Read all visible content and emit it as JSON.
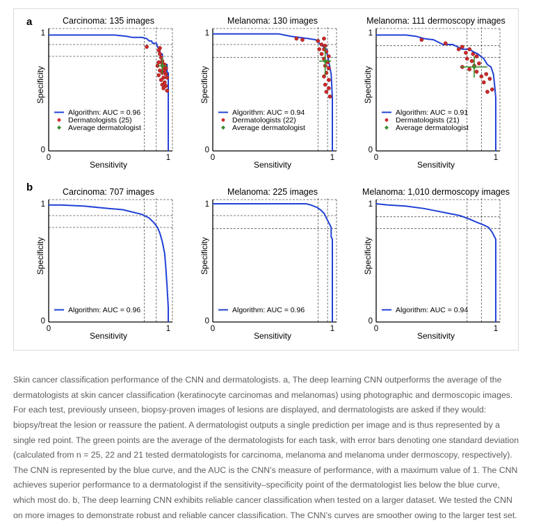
{
  "caption": "Skin cancer classification performance of the CNN and dermatologists. a, The deep learning CNN outperforms the average of the dermatologists at skin cancer classification (keratinocyte carcinomas and melanomas) using photographic and dermoscopic images. For each test, previously unseen, biopsy-proven images of lesions are displayed, and dermatologists are asked if they would: biopsy/treat the lesion or reassure the patient. A dermatologist outputs a single prediction per image and is thus represented by a single red point. The green points are the average of the dermatologists for each task, with error bars denoting one standard deviation (calculated from n = 25, 22 and 21 tested dermatologists for carcinoma, melanoma and melanoma under dermoscopy, respectively). The CNN is represented by the blue curve, and the AUC is the CNN’s measure of performance, with a maximum value of 1. The CNN achieves superior performance to a dermatologist if the sensitivity–specificity point of the dermatologist lies below the blue curve, which most do. b, The deep learning CNN exhibits reliable cancer classification when tested on a larger dataset. We tested the CNN on more images to demonstrate robust and reliable cancer classification. The CNN’s curves are smoother owing to the larger test set.",
  "panel_labels": [
    "a",
    "b"
  ],
  "colors": {
    "curve": "#2141d6",
    "derm": "#cc2a2a",
    "avg": "#3d8b2e",
    "guide": "#555555"
  },
  "chart_data": [
    {
      "type": "line",
      "panel": "a",
      "title": "Carcinoma: 135 images",
      "xlabel": "Sensitivity",
      "ylabel": "Specificity",
      "xlim": [
        0,
        1
      ],
      "ylim": [
        0,
        1
      ],
      "xticks": [
        "0",
        "1"
      ],
      "yticks": [
        "0",
        "1"
      ],
      "legend": [
        "Algorithm: AUC = 0.96",
        "Dermatologists (25)",
        "Average dermatologist"
      ],
      "curve": [
        [
          0,
          0.98
        ],
        [
          0.5,
          0.98
        ],
        [
          0.55,
          0.98
        ],
        [
          0.65,
          0.97
        ],
        [
          0.7,
          0.96
        ],
        [
          0.78,
          0.96
        ],
        [
          0.82,
          0.95
        ],
        [
          0.84,
          0.93
        ],
        [
          0.86,
          0.93
        ],
        [
          0.87,
          0.91
        ],
        [
          0.9,
          0.91
        ],
        [
          0.91,
          0.88
        ],
        [
          0.93,
          0.86
        ],
        [
          0.93,
          0.82
        ],
        [
          0.95,
          0.82
        ],
        [
          0.95,
          0.76
        ],
        [
          0.96,
          0.73
        ],
        [
          0.99,
          0.73
        ],
        [
          0.99,
          0.66
        ],
        [
          1.0,
          0.66
        ],
        [
          1.0,
          0
        ]
      ],
      "dermatologists": [
        [
          0.82,
          0.88
        ],
        [
          0.93,
          0.87
        ],
        [
          0.92,
          0.85
        ],
        [
          0.93,
          0.82
        ],
        [
          0.94,
          0.79
        ],
        [
          0.95,
          0.76
        ],
        [
          0.92,
          0.75
        ],
        [
          0.95,
          0.74
        ],
        [
          0.97,
          0.73
        ],
        [
          0.91,
          0.72
        ],
        [
          0.96,
          0.7
        ],
        [
          0.98,
          0.7
        ],
        [
          0.93,
          0.68
        ],
        [
          0.97,
          0.68
        ],
        [
          0.95,
          0.66
        ],
        [
          0.98,
          0.65
        ],
        [
          0.92,
          0.64
        ],
        [
          0.96,
          0.62
        ],
        [
          0.99,
          0.62
        ],
        [
          0.94,
          0.6
        ],
        [
          0.97,
          0.58
        ],
        [
          0.95,
          0.56
        ],
        [
          0.98,
          0.55
        ],
        [
          0.96,
          0.53
        ],
        [
          0.99,
          0.51
        ]
      ],
      "average": {
        "x": 0.95,
        "y": 0.72,
        "xerr": 0.04,
        "yerr": 0.07
      },
      "guides": {
        "x": [
          0.8,
          0.9
        ],
        "y": [
          0.9,
          0.8
        ]
      }
    },
    {
      "type": "line",
      "panel": "a",
      "title": "Melanoma: 130 images",
      "xlabel": "Sensitivity",
      "ylabel": "Specificity",
      "xlim": [
        0,
        1
      ],
      "ylim": [
        0,
        1
      ],
      "xticks": [
        "0",
        "1"
      ],
      "yticks": [
        "0",
        "1"
      ],
      "legend": [
        "Algorithm: AUC = 0.94",
        "Dermatologists (22)",
        "Average dermatologist"
      ],
      "curve": [
        [
          0,
          0.99
        ],
        [
          0.55,
          0.99
        ],
        [
          0.6,
          0.98
        ],
        [
          0.65,
          0.97
        ],
        [
          0.72,
          0.96
        ],
        [
          0.8,
          0.95
        ],
        [
          0.86,
          0.94
        ],
        [
          0.88,
          0.92
        ],
        [
          0.9,
          0.9
        ],
        [
          0.93,
          0.88
        ],
        [
          0.95,
          0.86
        ],
        [
          0.96,
          0.8
        ],
        [
          0.97,
          0.76
        ],
        [
          0.98,
          0.7
        ],
        [
          0.99,
          0.65
        ],
        [
          1.0,
          0.45
        ],
        [
          1.0,
          0
        ]
      ],
      "dermatologists": [
        [
          0.7,
          0.95
        ],
        [
          0.75,
          0.94
        ],
        [
          0.88,
          0.93
        ],
        [
          0.93,
          0.95
        ],
        [
          0.91,
          0.9
        ],
        [
          0.94,
          0.89
        ],
        [
          0.89,
          0.86
        ],
        [
          0.93,
          0.86
        ],
        [
          0.95,
          0.84
        ],
        [
          0.91,
          0.82
        ],
        [
          0.97,
          0.8
        ],
        [
          0.93,
          0.78
        ],
        [
          0.96,
          0.75
        ],
        [
          0.94,
          0.72
        ],
        [
          0.97,
          0.7
        ],
        [
          0.95,
          0.66
        ],
        [
          0.93,
          0.63
        ],
        [
          0.97,
          0.6
        ],
        [
          0.94,
          0.56
        ],
        [
          0.97,
          0.53
        ],
        [
          0.95,
          0.5
        ],
        [
          0.98,
          0.46
        ]
      ],
      "average": {
        "x": 0.94,
        "y": 0.76,
        "xerr": 0.05,
        "yerr": 0.12
      },
      "guides": {
        "x": [
          0.88,
          0.96
        ],
        "y": [
          0.9,
          0.79
        ]
      }
    },
    {
      "type": "line",
      "panel": "a",
      "title": "Melanoma: 111 dermoscopy images",
      "xlabel": "Sensitivity",
      "ylabel": "Specificity",
      "xlim": [
        0,
        1
      ],
      "ylim": [
        0,
        1
      ],
      "xticks": [
        "0",
        "1"
      ],
      "yticks": [
        "0",
        "1"
      ],
      "legend": [
        "Algorithm: AUC = 0.91",
        "Dermatologists (21)",
        "Average dermatologist"
      ],
      "curve": [
        [
          0,
          0.98
        ],
        [
          0.25,
          0.98
        ],
        [
          0.33,
          0.97
        ],
        [
          0.4,
          0.95
        ],
        [
          0.48,
          0.94
        ],
        [
          0.52,
          0.92
        ],
        [
          0.56,
          0.9
        ],
        [
          0.64,
          0.9
        ],
        [
          0.68,
          0.88
        ],
        [
          0.72,
          0.86
        ],
        [
          0.78,
          0.86
        ],
        [
          0.81,
          0.84
        ],
        [
          0.85,
          0.82
        ],
        [
          0.9,
          0.78
        ],
        [
          0.93,
          0.73
        ],
        [
          0.96,
          0.71
        ],
        [
          0.98,
          0.65
        ],
        [
          0.99,
          0.56
        ],
        [
          1.0,
          0.45
        ],
        [
          1.0,
          0
        ]
      ],
      "dermatologists": [
        [
          0.38,
          0.94
        ],
        [
          0.58,
          0.91
        ],
        [
          0.72,
          0.88
        ],
        [
          0.78,
          0.86
        ],
        [
          0.69,
          0.86
        ],
        [
          0.75,
          0.83
        ],
        [
          0.81,
          0.82
        ],
        [
          0.84,
          0.8
        ],
        [
          0.76,
          0.78
        ],
        [
          0.8,
          0.76
        ],
        [
          0.86,
          0.74
        ],
        [
          0.82,
          0.72
        ],
        [
          0.72,
          0.71
        ],
        [
          0.78,
          0.69
        ],
        [
          0.84,
          0.67
        ],
        [
          0.92,
          0.65
        ],
        [
          0.88,
          0.63
        ],
        [
          0.95,
          0.61
        ],
        [
          0.9,
          0.58
        ],
        [
          0.97,
          0.52
        ],
        [
          0.93,
          0.5
        ]
      ],
      "average": {
        "x": 0.82,
        "y": 0.71,
        "xerr": 0.11,
        "yerr": 0.09
      },
      "guides": {
        "x": [
          0.76,
          0.88
        ],
        "y": [
          0.89,
          0.79
        ]
      }
    },
    {
      "type": "line",
      "panel": "b",
      "title": "Carcinoma: 707 images",
      "xlabel": "Sensitivity",
      "ylabel": "Specificity",
      "xlim": [
        0,
        1
      ],
      "ylim": [
        0,
        1
      ],
      "xticks": [
        "0",
        "1"
      ],
      "yticks": [
        "0",
        "1"
      ],
      "legend": [
        "Algorithm: AUC = 0.96"
      ],
      "curve": [
        [
          0,
          0.99
        ],
        [
          0.1,
          0.99
        ],
        [
          0.3,
          0.98
        ],
        [
          0.5,
          0.96
        ],
        [
          0.62,
          0.95
        ],
        [
          0.7,
          0.93
        ],
        [
          0.78,
          0.91
        ],
        [
          0.84,
          0.88
        ],
        [
          0.88,
          0.84
        ],
        [
          0.91,
          0.8
        ],
        [
          0.93,
          0.75
        ],
        [
          0.95,
          0.68
        ],
        [
          0.97,
          0.58
        ],
        [
          0.98,
          0.45
        ],
        [
          0.99,
          0.3
        ],
        [
          1.0,
          0.12
        ],
        [
          1.0,
          0
        ]
      ],
      "guides": {
        "x": [
          0.8,
          0.9
        ],
        "y": [
          0.9,
          0.8
        ]
      }
    },
    {
      "type": "line",
      "panel": "b",
      "title": "Melanoma: 225 images",
      "xlabel": "Sensitivity",
      "ylabel": "Specificity",
      "xlim": [
        0,
        1
      ],
      "ylim": [
        0,
        1
      ],
      "xticks": [
        "0",
        "1"
      ],
      "yticks": [
        "0",
        "1"
      ],
      "legend": [
        "Algorithm: AUC = 0.96"
      ],
      "curve": [
        [
          0,
          1.0
        ],
        [
          0.78,
          1.0
        ],
        [
          0.82,
          0.99
        ],
        [
          0.87,
          0.97
        ],
        [
          0.9,
          0.95
        ],
        [
          0.93,
          0.92
        ],
        [
          0.95,
          0.88
        ],
        [
          0.97,
          0.84
        ],
        [
          0.99,
          0.8
        ],
        [
          0.99,
          0.72
        ],
        [
          1.0,
          0.7
        ],
        [
          1.0,
          0
        ]
      ],
      "guides": {
        "x": [
          0.88,
          0.96
        ],
        "y": [
          0.9,
          0.79
        ]
      }
    },
    {
      "type": "line",
      "panel": "b",
      "title": "Melanoma: 1,010 dermoscopy images",
      "xlabel": "Sensitivity",
      "ylabel": "Specificity",
      "xlim": [
        0,
        1
      ],
      "ylim": [
        0,
        1
      ],
      "xticks": [
        "0",
        "1"
      ],
      "yticks": [
        "0",
        "1"
      ],
      "legend": [
        "Algorithm: AUC = 0.94"
      ],
      "curve": [
        [
          0,
          1.0
        ],
        [
          0.1,
          0.99
        ],
        [
          0.25,
          0.98
        ],
        [
          0.4,
          0.96
        ],
        [
          0.5,
          0.94
        ],
        [
          0.6,
          0.92
        ],
        [
          0.7,
          0.9
        ],
        [
          0.78,
          0.87
        ],
        [
          0.85,
          0.84
        ],
        [
          0.9,
          0.82
        ],
        [
          0.94,
          0.8
        ],
        [
          0.97,
          0.76
        ],
        [
          0.99,
          0.72
        ],
        [
          1.0,
          0.7
        ],
        [
          1.0,
          0
        ]
      ],
      "guides": {
        "x": [
          0.76,
          0.88
        ],
        "y": [
          0.89,
          0.79
        ]
      }
    }
  ]
}
